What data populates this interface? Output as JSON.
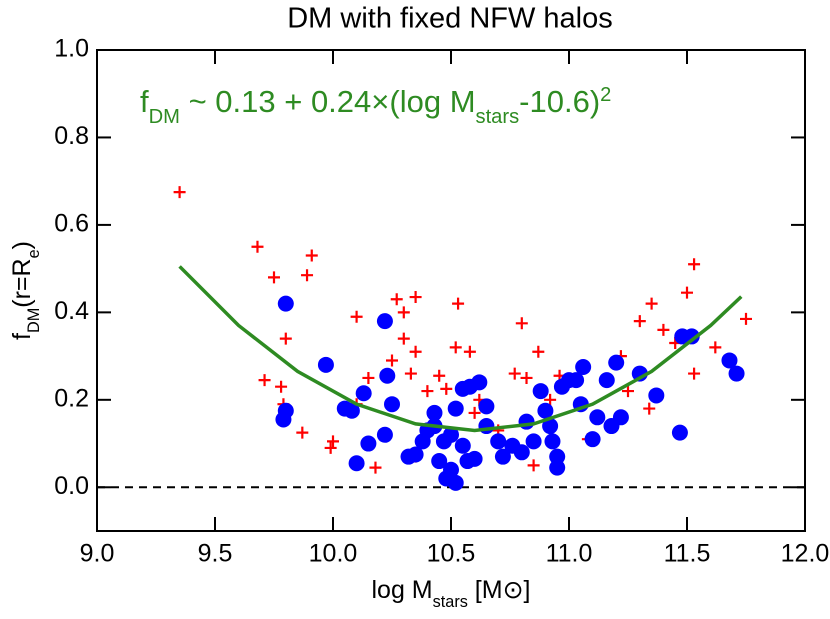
{
  "chart_data": {
    "type": "scatter",
    "title": "DM with fixed NFW halos",
    "xlabel": [
      "log M",
      "stars",
      " [M",
      "⊙",
      "]"
    ],
    "ylabel": [
      "f",
      "DM",
      "(r=R",
      "e",
      ")"
    ],
    "annotation": [
      "f",
      "DM",
      " ~ 0.13 + 0.24×(log M",
      "stars",
      "-10.6)",
      "2"
    ],
    "annotation_color": "#2e8b22",
    "xlim": [
      9.0,
      12.0
    ],
    "ylim": [
      -0.1,
      1.0
    ],
    "xticks": [
      {
        "value": 9.0,
        "label": "9.0"
      },
      9.5,
      {
        "value": 10.0,
        "label": "10.0"
      },
      10.5,
      {
        "value": 11.0,
        "label": "11.0"
      },
      11.5,
      {
        "value": 12.0,
        "label": "12.0"
      }
    ],
    "yticks": [
      {
        "value": 0.0,
        "label": "0.0"
      },
      0.2,
      0.4,
      0.6,
      0.8,
      {
        "value": 1.0,
        "label": "1.0"
      }
    ],
    "reference_line": 0,
    "fit": {
      "color": "#2e8b22",
      "x": [
        9.35,
        9.6,
        9.85,
        10.1,
        10.35,
        10.6,
        10.85,
        11.1,
        11.35,
        11.6,
        11.73
      ],
      "values": [
        0.505,
        0.37,
        0.265,
        0.19,
        0.145,
        0.13,
        0.145,
        0.19,
        0.265,
        0.37,
        0.436
      ]
    },
    "series": [
      {
        "marker": "cross",
        "color": "#ff0000",
        "x": [
          9.35,
          9.68,
          9.75,
          9.91,
          9.89,
          9.71,
          9.78,
          9.8,
          9.79,
          9.8,
          9.87,
          10.0,
          9.99,
          10.1,
          10.1,
          10.27,
          10.3,
          10.25,
          10.18,
          10.35,
          10.3,
          10.35,
          10.33,
          10.4,
          10.35,
          10.45,
          10.48,
          10.53,
          10.52,
          10.58,
          10.6,
          10.62,
          10.7,
          10.77,
          10.82,
          10.87,
          10.85,
          10.92,
          10.96,
          11.05,
          11.08,
          11.22,
          11.25,
          11.34,
          11.35,
          11.3,
          11.53,
          11.5,
          11.53,
          11.45,
          11.4,
          11.75,
          11.62,
          10.8,
          10.15
        ],
        "values": [
          0.675,
          0.55,
          0.48,
          0.53,
          0.485,
          0.245,
          0.23,
          0.34,
          0.19,
          0.17,
          0.125,
          0.105,
          0.09,
          0.19,
          0.39,
          0.43,
          0.34,
          0.29,
          0.045,
          0.435,
          0.4,
          0.31,
          0.26,
          0.22,
          0.07,
          0.255,
          0.225,
          0.42,
          0.32,
          0.31,
          0.17,
          0.2,
          0.13,
          0.26,
          0.25,
          0.31,
          0.05,
          0.2,
          0.255,
          0.19,
          0.11,
          0.3,
          0.22,
          0.18,
          0.42,
          0.38,
          0.51,
          0.445,
          0.26,
          0.33,
          0.36,
          0.385,
          0.32,
          0.375,
          0.25
        ]
      },
      {
        "marker": "circle",
        "color": "#0000ff",
        "x": [
          9.8,
          9.8,
          9.79,
          9.97,
          10.05,
          10.08,
          10.1,
          10.13,
          10.15,
          10.22,
          10.23,
          10.25,
          10.22,
          10.32,
          10.35,
          10.38,
          10.4,
          10.43,
          10.43,
          10.45,
          10.47,
          10.48,
          10.52,
          10.5,
          10.5,
          10.52,
          10.55,
          10.55,
          10.58,
          10.62,
          10.57,
          10.6,
          10.65,
          10.65,
          10.7,
          10.72,
          10.76,
          10.8,
          10.82,
          10.85,
          10.88,
          10.9,
          10.92,
          10.93,
          10.95,
          10.97,
          11.0,
          10.95,
          11.03,
          11.06,
          11.05,
          11.1,
          11.12,
          11.16,
          11.18,
          11.2,
          11.22,
          11.3,
          11.37,
          11.47,
          11.48,
          11.52,
          11.68,
          11.71
        ],
        "values": [
          0.42,
          0.175,
          0.155,
          0.28,
          0.18,
          0.175,
          0.055,
          0.215,
          0.1,
          0.38,
          0.255,
          0.19,
          0.12,
          0.07,
          0.075,
          0.105,
          0.13,
          0.14,
          0.17,
          0.06,
          0.105,
          0.02,
          0.01,
          0.04,
          0.12,
          0.18,
          0.095,
          0.225,
          0.23,
          0.24,
          0.06,
          0.065,
          0.185,
          0.14,
          0.105,
          0.07,
          0.095,
          0.08,
          0.15,
          0.105,
          0.22,
          0.175,
          0.14,
          0.105,
          0.07,
          0.23,
          0.245,
          0.045,
          0.245,
          0.275,
          0.19,
          0.11,
          0.16,
          0.245,
          0.14,
          0.285,
          0.16,
          0.26,
          0.21,
          0.125,
          0.345,
          0.345,
          0.29,
          0.26
        ]
      }
    ]
  }
}
